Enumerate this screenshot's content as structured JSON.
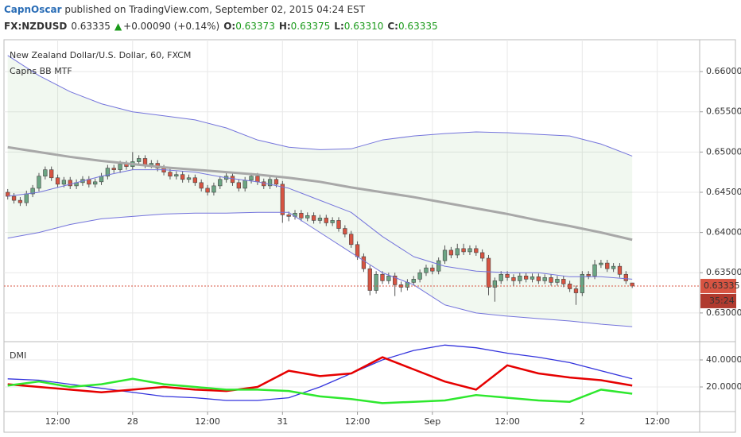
{
  "header": {
    "author": "CapnOscar",
    "published": " published on TradingView.com, September 02, 2015 04:24 EST",
    "symbol": "FX:NZDUSD",
    "price": "0.63335",
    "change_arrow": "▲",
    "change": "+0.00090 (+0.14%)",
    "open_label": "O:",
    "open": "0.63373",
    "high_label": "H:",
    "high": "0.63375",
    "low_label": "L:",
    "low": "0.63310",
    "close_label": "C:",
    "close": "0.63335"
  },
  "chart_data": [
    {
      "type": "candlestick",
      "title": "New Zealand Dollar/U.S. Dollar, 60, FXCM",
      "subtitle": "Capns BB MTF",
      "up_color": "#6ba583",
      "down_color": "#d75442",
      "fill_color": "rgba(120,190,110,0.1)",
      "x": [
        0,
        1,
        2,
        3,
        4,
        5,
        6,
        7,
        8,
        9,
        10,
        11,
        12,
        13,
        14,
        15,
        16,
        17,
        18,
        19,
        20,
        21,
        22,
        23,
        24,
        25,
        26,
        27,
        28,
        29,
        30,
        31,
        32,
        33,
        34,
        35,
        36,
        37,
        38,
        39,
        40,
        41,
        42,
        43,
        44,
        45,
        46,
        47,
        48,
        49,
        50,
        51,
        52,
        53,
        54,
        55,
        56,
        57,
        58,
        59,
        60,
        61,
        62,
        63,
        64,
        65,
        66,
        67,
        68,
        69,
        70,
        71,
        72,
        73,
        74,
        75,
        76,
        77,
        78,
        79,
        80,
        81,
        82,
        83,
        84,
        85,
        86,
        87,
        88,
        89,
        90,
        91,
        92,
        93,
        94,
        95,
        96,
        97,
        98,
        99,
        100
      ],
      "open": [
        0.645,
        0.6445,
        0.644,
        0.6437,
        0.6448,
        0.6455,
        0.647,
        0.6478,
        0.6468,
        0.646,
        0.6465,
        0.6458,
        0.6462,
        0.6466,
        0.646,
        0.6463,
        0.647,
        0.648,
        0.6478,
        0.6485,
        0.6482,
        0.6488,
        0.6492,
        0.6484,
        0.6486,
        0.648,
        0.6475,
        0.647,
        0.6472,
        0.6466,
        0.6468,
        0.6462,
        0.6455,
        0.645,
        0.6458,
        0.6466,
        0.647,
        0.6462,
        0.6455,
        0.6465,
        0.647,
        0.6463,
        0.6458,
        0.6466,
        0.646,
        0.6422,
        0.642,
        0.6424,
        0.6418,
        0.6421,
        0.6415,
        0.6418,
        0.6412,
        0.6415,
        0.6405,
        0.6398,
        0.6385,
        0.637,
        0.6355,
        0.6328,
        0.6348,
        0.634,
        0.6346,
        0.6335,
        0.6332,
        0.6338,
        0.6342,
        0.635,
        0.6356,
        0.6352,
        0.6365,
        0.6378,
        0.6372,
        0.638,
        0.6376,
        0.638,
        0.6375,
        0.6368,
        0.6332,
        0.634,
        0.6348,
        0.6344,
        0.634,
        0.6346,
        0.6342,
        0.6345,
        0.634,
        0.6344,
        0.6338,
        0.6342,
        0.6336,
        0.633,
        0.6325,
        0.6348,
        0.6346,
        0.636,
        0.6362,
        0.6355,
        0.6358,
        0.6348,
        0.63373
      ],
      "high": [
        0.6454,
        0.6449,
        0.6444,
        0.6452,
        0.6459,
        0.6474,
        0.6482,
        0.6482,
        0.6472,
        0.6469,
        0.6469,
        0.6466,
        0.647,
        0.647,
        0.6467,
        0.6474,
        0.6484,
        0.6484,
        0.6489,
        0.6489,
        0.65,
        0.6496,
        0.6496,
        0.649,
        0.649,
        0.6484,
        0.6479,
        0.6476,
        0.6476,
        0.6472,
        0.6472,
        0.6466,
        0.6459,
        0.6462,
        0.647,
        0.6474,
        0.6474,
        0.6466,
        0.6469,
        0.6474,
        0.6474,
        0.6467,
        0.647,
        0.647,
        0.6464,
        0.6426,
        0.6428,
        0.6428,
        0.6425,
        0.6425,
        0.6422,
        0.6422,
        0.6419,
        0.6419,
        0.6409,
        0.6402,
        0.6389,
        0.6374,
        0.6359,
        0.6352,
        0.6352,
        0.635,
        0.635,
        0.6339,
        0.6342,
        0.6346,
        0.6354,
        0.636,
        0.636,
        0.6369,
        0.6384,
        0.6382,
        0.6386,
        0.6386,
        0.6384,
        0.6384,
        0.6379,
        0.6372,
        0.6344,
        0.6352,
        0.6352,
        0.6348,
        0.635,
        0.635,
        0.6349,
        0.6349,
        0.6348,
        0.6348,
        0.6346,
        0.6346,
        0.634,
        0.6334,
        0.6352,
        0.6352,
        0.6366,
        0.6366,
        0.6366,
        0.6362,
        0.6362,
        0.6352,
        0.63375
      ],
      "low": [
        0.6441,
        0.6436,
        0.6433,
        0.6433,
        0.6444,
        0.6451,
        0.6466,
        0.6464,
        0.6456,
        0.6456,
        0.6454,
        0.6454,
        0.6458,
        0.6456,
        0.6456,
        0.6459,
        0.6466,
        0.6474,
        0.6474,
        0.6478,
        0.6478,
        0.6484,
        0.648,
        0.648,
        0.6476,
        0.6471,
        0.6466,
        0.6466,
        0.6462,
        0.6462,
        0.6458,
        0.6451,
        0.6446,
        0.6446,
        0.6454,
        0.6462,
        0.6458,
        0.6451,
        0.6451,
        0.6461,
        0.6459,
        0.6454,
        0.6454,
        0.6456,
        0.6412,
        0.6414,
        0.6416,
        0.6414,
        0.6414,
        0.6411,
        0.6411,
        0.6408,
        0.6408,
        0.6401,
        0.6394,
        0.6381,
        0.6366,
        0.6351,
        0.6322,
        0.6324,
        0.6336,
        0.6336,
        0.6321,
        0.6326,
        0.6328,
        0.6334,
        0.6338,
        0.6346,
        0.6348,
        0.6348,
        0.6361,
        0.6368,
        0.6368,
        0.6372,
        0.6372,
        0.6371,
        0.6364,
        0.6322,
        0.6314,
        0.6336,
        0.634,
        0.6334,
        0.6336,
        0.6338,
        0.6338,
        0.6336,
        0.6336,
        0.6334,
        0.6334,
        0.6332,
        0.6326,
        0.631,
        0.6321,
        0.6342,
        0.6342,
        0.6356,
        0.6351,
        0.6351,
        0.6344,
        0.6336,
        0.6331
      ],
      "close": [
        0.6445,
        0.644,
        0.6437,
        0.6448,
        0.6455,
        0.647,
        0.6478,
        0.6468,
        0.646,
        0.6465,
        0.6458,
        0.6462,
        0.6466,
        0.646,
        0.6463,
        0.647,
        0.648,
        0.6478,
        0.6485,
        0.6482,
        0.6488,
        0.6492,
        0.6484,
        0.6486,
        0.648,
        0.6475,
        0.647,
        0.6472,
        0.6466,
        0.6468,
        0.6462,
        0.6455,
        0.645,
        0.6458,
        0.6466,
        0.647,
        0.6462,
        0.6455,
        0.6465,
        0.647,
        0.6463,
        0.6458,
        0.6466,
        0.646,
        0.6422,
        0.642,
        0.6424,
        0.6418,
        0.6421,
        0.6415,
        0.6418,
        0.6412,
        0.6415,
        0.6405,
        0.6398,
        0.6385,
        0.637,
        0.6355,
        0.6328,
        0.6348,
        0.634,
        0.6346,
        0.6335,
        0.6332,
        0.6338,
        0.6342,
        0.635,
        0.6356,
        0.6352,
        0.6365,
        0.6378,
        0.6372,
        0.638,
        0.6376,
        0.638,
        0.6375,
        0.6368,
        0.6332,
        0.634,
        0.6348,
        0.6344,
        0.634,
        0.6346,
        0.6342,
        0.6345,
        0.634,
        0.6344,
        0.6338,
        0.6342,
        0.6336,
        0.633,
        0.6325,
        0.6348,
        0.6346,
        0.636,
        0.6362,
        0.6355,
        0.6358,
        0.6348,
        0.634,
        0.63335
      ],
      "series": [
        {
          "color": "#7474dc",
          "width": 1,
          "x": [
            0,
            5,
            10,
            15,
            20,
            25,
            30,
            35,
            40,
            45,
            50,
            55,
            60,
            65,
            70,
            75,
            80,
            85,
            90,
            95,
            100
          ],
          "values": [
            0.662,
            0.6595,
            0.6575,
            0.656,
            0.655,
            0.6545,
            0.654,
            0.653,
            0.6515,
            0.6506,
            0.6503,
            0.6504,
            0.6515,
            0.652,
            0.6523,
            0.6525,
            0.6524,
            0.6522,
            0.652,
            0.651,
            0.6495
          ]
        },
        {
          "color": "#a8a8a8",
          "width": 3,
          "x": [
            0,
            5,
            10,
            15,
            20,
            25,
            30,
            35,
            40,
            45,
            50,
            55,
            60,
            65,
            70,
            75,
            80,
            85,
            90,
            95,
            100
          ],
          "values": [
            0.6506,
            0.65,
            0.6494,
            0.6489,
            0.6485,
            0.6481,
            0.6478,
            0.6475,
            0.6472,
            0.6468,
            0.6463,
            0.6456,
            0.645,
            0.6444,
            0.6437,
            0.643,
            0.6423,
            0.6415,
            0.6408,
            0.64,
            0.6391
          ]
        },
        {
          "color": "#7474dc",
          "width": 1,
          "x": [
            0,
            5,
            10,
            15,
            20,
            25,
            30,
            35,
            40,
            45,
            50,
            55,
            60,
            65,
            70,
            75,
            80,
            85,
            90,
            95,
            100
          ],
          "values": [
            0.6445,
            0.645,
            0.646,
            0.647,
            0.6478,
            0.6478,
            0.6475,
            0.6468,
            0.6463,
            0.6455,
            0.644,
            0.6425,
            0.6395,
            0.637,
            0.6358,
            0.6352,
            0.635,
            0.635,
            0.6345,
            0.6345,
            0.6342
          ]
        },
        {
          "color": "#7474dc",
          "width": 1,
          "x": [
            0,
            5,
            10,
            15,
            20,
            25,
            30,
            35,
            40,
            45,
            50,
            55,
            60,
            65,
            70,
            75,
            80,
            85,
            90,
            95,
            100
          ],
          "values": [
            0.6393,
            0.64,
            0.641,
            0.6417,
            0.642,
            0.6423,
            0.6424,
            0.6424,
            0.6425,
            0.6425,
            0.64,
            0.6375,
            0.635,
            0.6335,
            0.631,
            0.63,
            0.6296,
            0.6293,
            0.629,
            0.6286,
            0.6283
          ]
        }
      ],
      "last_price": 0.63335,
      "last_price_color": "#d75442",
      "countdown": "35:24",
      "xlim": [
        -0.6,
        110.8
      ],
      "ylim": [
        0.62663,
        0.66396
      ],
      "yticks": [
        {
          "value": 0.63,
          "label": "0.63000"
        },
        {
          "value": 0.635,
          "label": "0.63500"
        },
        {
          "value": 0.64,
          "label": "0.64000"
        },
        {
          "value": 0.645,
          "label": "0.64500"
        },
        {
          "value": 0.65,
          "label": "0.65000"
        },
        {
          "value": 0.655,
          "label": "0.65500"
        },
        {
          "value": 0.66,
          "label": "0.66000"
        }
      ],
      "grid": true
    },
    {
      "type": "line",
      "title": "DMI",
      "series": [
        {
          "color": "#3333dd",
          "width": 1.3,
          "x": [
            0,
            5,
            10,
            15,
            20,
            25,
            30,
            35,
            40,
            45,
            50,
            55,
            60,
            65,
            70,
            75,
            80,
            85,
            90,
            95,
            100
          ],
          "values": [
            26,
            25,
            22,
            19,
            16,
            13,
            12,
            10,
            10,
            12,
            20,
            30,
            40,
            47,
            51,
            49,
            45,
            42,
            38,
            32,
            26
          ]
        },
        {
          "color": "#e60000",
          "width": 2.5,
          "x": [
            0,
            5,
            10,
            15,
            20,
            25,
            30,
            35,
            40,
            45,
            50,
            55,
            60,
            65,
            70,
            75,
            80,
            85,
            90,
            95,
            100
          ],
          "values": [
            22,
            20,
            18,
            16,
            18,
            20,
            18,
            17,
            20,
            32,
            28,
            30,
            42,
            33,
            24,
            18,
            36,
            30,
            27,
            25,
            21
          ]
        },
        {
          "color": "#2ee82e",
          "width": 2.5,
          "x": [
            0,
            5,
            10,
            15,
            20,
            25,
            30,
            35,
            40,
            45,
            50,
            55,
            60,
            65,
            70,
            75,
            80,
            85,
            90,
            95,
            100
          ],
          "values": [
            21,
            24,
            20,
            22,
            26,
            22,
            20,
            18,
            18,
            17,
            13,
            11,
            8,
            9,
            10,
            14,
            12,
            10,
            9,
            18,
            15
          ]
        }
      ],
      "xlim": [
        -0.6,
        110.8
      ],
      "ylim": [
        1.76,
        52.35
      ],
      "yticks": [
        {
          "value": 20,
          "label": "20.0000"
        },
        {
          "value": 40,
          "label": "40.0000"
        }
      ],
      "xticks": [
        {
          "value": 8,
          "label": "12:00"
        },
        {
          "value": 20,
          "label": "28"
        },
        {
          "value": 32,
          "label": "12:00"
        },
        {
          "value": 44,
          "label": "31"
        },
        {
          "value": 56,
          "label": "12:00"
        },
        {
          "value": 68,
          "label": "Sep"
        },
        {
          "value": 80,
          "label": "12:00"
        },
        {
          "value": 92,
          "label": "2"
        },
        {
          "value": 104,
          "label": "12:00"
        }
      ],
      "grid": true
    }
  ]
}
